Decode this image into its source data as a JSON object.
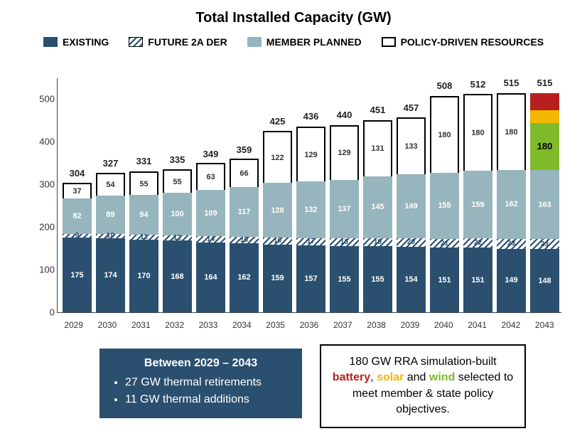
{
  "title": {
    "text": "Total Installed Capacity (GW)",
    "fontsize": 20,
    "color": "#222222"
  },
  "legend": {
    "items": [
      {
        "label": "EXISTING",
        "color": "#2b4f6f",
        "type": "solid"
      },
      {
        "label": "FUTURE 2A DER",
        "color": "hatch",
        "type": "hatch"
      },
      {
        "label": "MEMBER PLANNED",
        "color": "#96b5bd",
        "type": "solid"
      },
      {
        "label": "POLICY-DRIVEN RESOURCES",
        "color": "#ffffff",
        "type": "outline"
      }
    ],
    "fontsize": 14
  },
  "chart": {
    "type": "stacked-bar",
    "ylim": [
      0,
      550
    ],
    "yticks": [
      0,
      100,
      200,
      300,
      400,
      500
    ],
    "categories": [
      "2029",
      "2030",
      "2031",
      "2032",
      "2033",
      "2034",
      "2035",
      "2036",
      "2037",
      "2038",
      "2039",
      "2040",
      "2041",
      "2042",
      "2043"
    ],
    "segments_order": [
      "existing",
      "futureder",
      "member",
      "policy"
    ],
    "colors": {
      "existing": "#2b4f6f",
      "futureder_hatch_fg": "#2b4f6f",
      "member": "#96b5bd",
      "policy_border": "#000000",
      "policy_fill": "#ffffff"
    },
    "data": [
      {
        "existing": 175,
        "futureder": 9,
        "member": 82,
        "policy": 37,
        "total": 304
      },
      {
        "existing": 174,
        "futureder": 10,
        "member": 89,
        "policy": 54,
        "total": 327
      },
      {
        "existing": 170,
        "futureder": 11,
        "member": 94,
        "policy": 55,
        "total": 331
      },
      {
        "existing": 168,
        "futureder": 12,
        "member": 100,
        "policy": 55,
        "total": 335
      },
      {
        "existing": 164,
        "futureder": 14,
        "member": 109,
        "policy": 63,
        "total": 349
      },
      {
        "existing": 162,
        "futureder": 15,
        "member": 117,
        "policy": 66,
        "total": 359
      },
      {
        "existing": 159,
        "futureder": 16,
        "member": 128,
        "policy": 122,
        "total": 425
      },
      {
        "existing": 157,
        "futureder": 17,
        "member": 132,
        "policy": 129,
        "total": 436
      },
      {
        "existing": 155,
        "futureder": 18,
        "member": 137,
        "policy": 129,
        "total": 440
      },
      {
        "existing": 155,
        "futureder": 19,
        "member": 145,
        "policy": 131,
        "total": 451
      },
      {
        "existing": 154,
        "futureder": 20,
        "member": 149,
        "policy": 133,
        "total": 457
      },
      {
        "existing": 151,
        "futureder": 21,
        "member": 155,
        "policy": 180,
        "total": 508
      },
      {
        "existing": 151,
        "futureder": 22,
        "member": 159,
        "policy": 180,
        "total": 512
      },
      {
        "existing": 149,
        "futureder": 23,
        "member": 162,
        "policy": 180,
        "total": 515
      },
      {
        "existing": 148,
        "futureder": 23,
        "member": 163,
        "policy_split": {
          "wind": 110,
          "solar": 30,
          "battery": 40,
          "label": 180
        },
        "total": 515
      }
    ],
    "split_colors": {
      "wind": "#7fba2b",
      "solar": "#f5b800",
      "battery": "#b82020"
    },
    "value_label_fontsize": 11,
    "total_label_fontsize": 13,
    "axis_fontsize": 13
  },
  "callout_blue": {
    "heading": "Between 2029 – 2043",
    "bullets": [
      "27 GW thermal retirements",
      "11 GW thermal additions"
    ],
    "bg": "#2b4f6f",
    "fg": "#ffffff",
    "fontsize": 16
  },
  "callout_white": {
    "prefix": "180 GW RRA simulation-built",
    "words": {
      "battery": "battery",
      "solar": "solar",
      "and": "and",
      "wind": "wind"
    },
    "suffix": "selected to meet member & state policy objectives.",
    "border": "#000000",
    "fontsize": 16
  }
}
